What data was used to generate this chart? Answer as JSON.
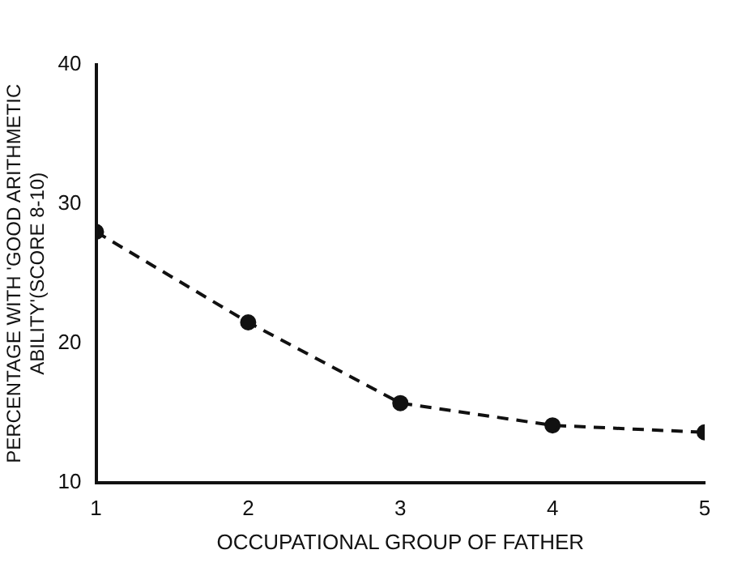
{
  "chart_data": {
    "type": "line",
    "xlabel": "OCCUPATIONAL GROUP OF FATHER",
    "ylabel": "PERCENTAGE WITH 'GOOD ARITHMETIC ABILITY'(SCORE 8-10)",
    "x": [
      1,
      2,
      3,
      4,
      5
    ],
    "series": [
      {
        "color": "#111111",
        "values": [
          28.0,
          21.5,
          15.7,
          14.1,
          13.6
        ]
      }
    ],
    "xlim": [
      1,
      5
    ],
    "xticks": [
      1,
      2,
      3,
      4,
      5
    ],
    "ylim": [
      10,
      40
    ],
    "yticks": [
      10,
      20,
      30,
      40
    ],
    "grid": false,
    "legend": false,
    "marker": "circle",
    "line_style": "dashed"
  }
}
